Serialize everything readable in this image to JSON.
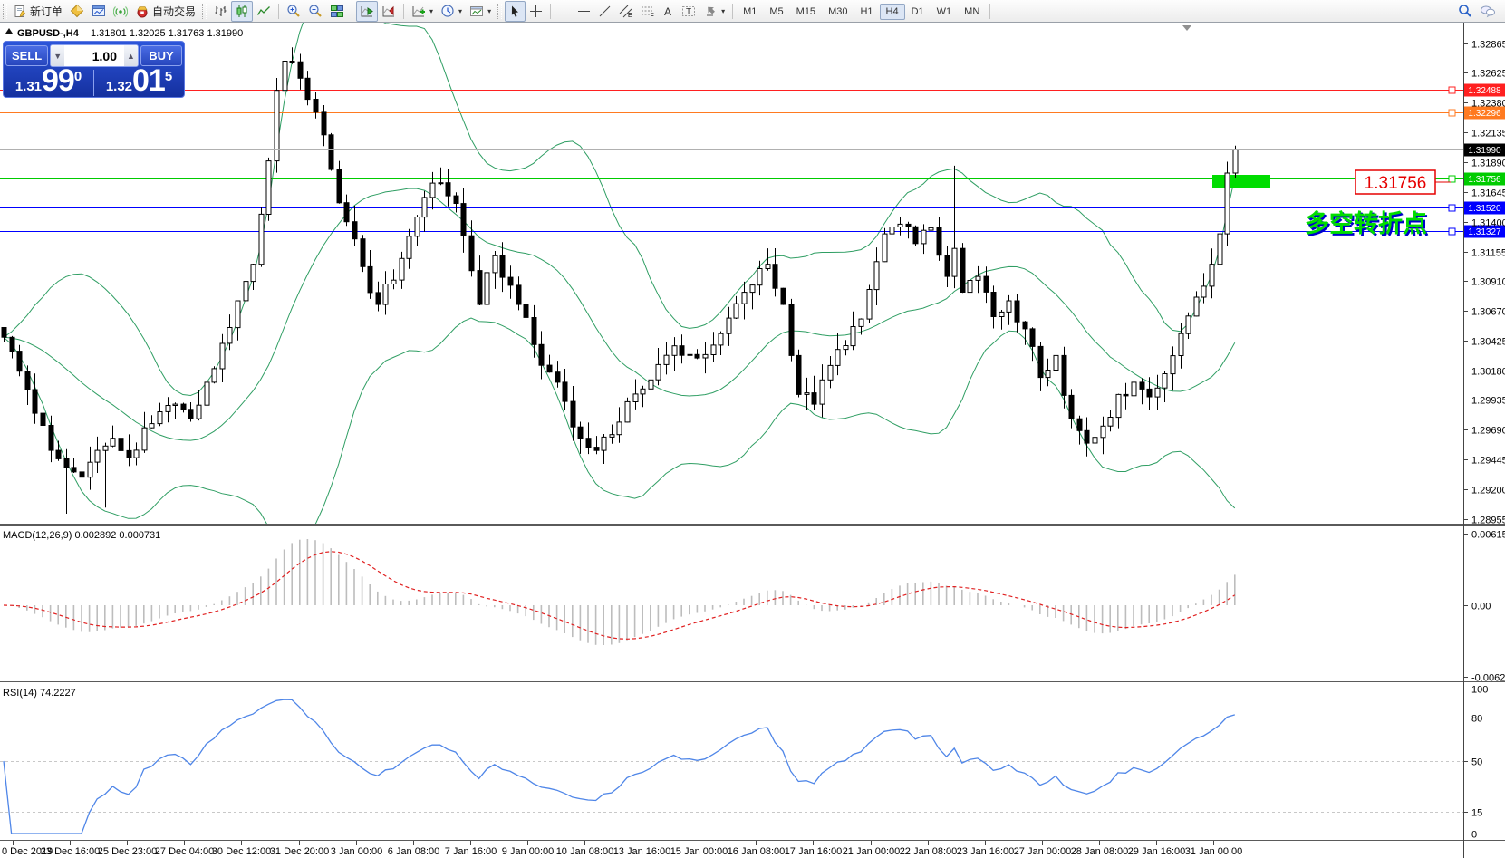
{
  "toolbar": {
    "new_order_label": "新订单",
    "autotrading_label": "自动交易",
    "timeframes": [
      "M1",
      "M5",
      "M15",
      "M30",
      "H1",
      "H4",
      "D1",
      "W1",
      "MN"
    ],
    "active_timeframe": "H4"
  },
  "chart_header": {
    "symbol_period": "GBPUSD-,H4",
    "ohlc": "1.31801 1.32025 1.31763 1.31990"
  },
  "trade_panel": {
    "sell_label": "SELL",
    "buy_label": "BUY",
    "volume": "1.00",
    "sell_price_small": "1.31",
    "sell_price_big": "99",
    "sell_price_sup": "0",
    "buy_price_small": "1.32",
    "buy_price_big": "01",
    "buy_price_sup": "5"
  },
  "annotations": {
    "price_label": "1.31756",
    "price_label_color": "#e60000",
    "turning_point": "多空转折点",
    "turning_point_color": "#00dd00",
    "turning_point_shadow": "#0000cc",
    "highlight_box_color": "#00dd00"
  },
  "price_axis": {
    "ticks": [
      "1.32865",
      "1.32625",
      "1.32380",
      "1.32135",
      "1.31890",
      "1.31645",
      "1.31400",
      "1.31155",
      "1.30910",
      "1.30670",
      "1.30425",
      "1.30180",
      "1.29935",
      "1.29690",
      "1.29445",
      "1.29200",
      "1.28955"
    ]
  },
  "levels": [
    {
      "price": "1.32488",
      "color": "#ff2020",
      "badge_fg": "#ffffff"
    },
    {
      "price": "1.32296",
      "color": "#ff7a20",
      "badge_fg": "#ffffff"
    },
    {
      "price": "1.31756",
      "color": "#00cc00",
      "badge_fg": "#ffffff"
    },
    {
      "price": "1.31520",
      "color": "#0000ff",
      "badge_fg": "#ffffff"
    },
    {
      "price": "1.31327",
      "color": "#0000ff",
      "badge_fg": "#ffffff"
    }
  ],
  "current_price": {
    "price": "1.31990",
    "line_color": "#b0b0b0",
    "badge_bg": "#000000",
    "badge_fg": "#ffffff"
  },
  "time_axis": {
    "labels": [
      "0 Dec 2019",
      "23 Dec 16:00",
      "25 Dec 23:00",
      "27 Dec 04:00",
      "30 Dec 12:00",
      "31 Dec 20:00",
      "3 Jan 00:00",
      "6 Jan 08:00",
      "7 Jan 16:00",
      "9 Jan 00:00",
      "10 Jan 08:00",
      "13 Jan 16:00",
      "15 Jan 00:00",
      "16 Jan 08:00",
      "17 Jan 16:00",
      "21 Jan 00:00",
      "22 Jan 08:00",
      "23 Jan 16:00",
      "27 Jan 00:00",
      "28 Jan 08:00",
      "29 Jan 16:00",
      "31 Jan 00:00"
    ]
  },
  "indicators": {
    "macd": {
      "label": "MACD(12,26,9) 0.002892 0.000731",
      "fast": 12,
      "slow": 26,
      "signal": 9,
      "current": "0.002892",
      "signal_current": "0.000731",
      "axis": [
        "0.006152",
        "0.00",
        "-0.006278"
      ],
      "histogram_color": "#bdbdbd",
      "signal_color": "#e02020"
    },
    "rsi": {
      "label": "RSI(14) 74.2227",
      "period": 14,
      "current": "74.2227",
      "axis": [
        "100",
        "80",
        "50",
        "15",
        "0"
      ],
      "level_lines": [
        80,
        50,
        15
      ],
      "line_color": "#4f86e8"
    },
    "bollinger": {
      "period": 20,
      "deviation": 2,
      "color": "#2f9e63"
    }
  },
  "chart_data": {
    "type": "candlestick",
    "symbol": "GBPUSD-",
    "timeframe": "H4",
    "bar_count": 159,
    "price_axis_high": 1.32865,
    "price_axis_low": 1.28955,
    "ohlc_current": {
      "open": 1.31801,
      "high": 1.32025,
      "low": 1.31763,
      "close": 1.3199
    },
    "close_anchors": [
      [
        0,
        1.3045
      ],
      [
        3,
        1.3002
      ],
      [
        6,
        1.2952
      ],
      [
        8,
        1.2938
      ],
      [
        10,
        1.293
      ],
      [
        12,
        1.2952
      ],
      [
        14,
        1.2962
      ],
      [
        16,
        1.2946
      ],
      [
        19,
        1.2974
      ],
      [
        22,
        1.299
      ],
      [
        24,
        1.2978
      ],
      [
        26,
        1.3008
      ],
      [
        28,
        1.304
      ],
      [
        30,
        1.3075
      ],
      [
        32,
        1.3105
      ],
      [
        34,
        1.319
      ],
      [
        35,
        1.3248
      ],
      [
        36,
        1.3272
      ],
      [
        38,
        1.3258
      ],
      [
        40,
        1.323
      ],
      [
        42,
        1.3183
      ],
      [
        44,
        1.314
      ],
      [
        46,
        1.3103
      ],
      [
        48,
        1.3072
      ],
      [
        50,
        1.3092
      ],
      [
        52,
        1.3128
      ],
      [
        54,
        1.316
      ],
      [
        56,
        1.3172
      ],
      [
        58,
        1.3155
      ],
      [
        61,
        1.3072
      ],
      [
        63,
        1.3112
      ],
      [
        66,
        1.3072
      ],
      [
        69,
        1.3022
      ],
      [
        71,
        1.3008
      ],
      [
        74,
        1.2962
      ],
      [
        76,
        1.2952
      ],
      [
        78,
        1.2965
      ],
      [
        80,
        1.2992
      ],
      [
        83,
        1.301
      ],
      [
        86,
        1.3038
      ],
      [
        89,
        1.3028
      ],
      [
        92,
        1.3048
      ],
      [
        95,
        1.3082
      ],
      [
        98,
        1.3105
      ],
      [
        100,
        1.3072
      ],
      [
        101,
        1.303
      ],
      [
        102,
        1.2998
      ],
      [
        104,
        1.299
      ],
      [
        107,
        1.3035
      ],
      [
        110,
        1.306
      ],
      [
        113,
        1.313
      ],
      [
        115,
        1.3138
      ],
      [
        117,
        1.3122
      ],
      [
        119,
        1.3135
      ],
      [
        121,
        1.3095
      ],
      [
        122,
        1.3118
      ],
      [
        123,
        1.3082
      ],
      [
        125,
        1.3095
      ],
      [
        127,
        1.3062
      ],
      [
        129,
        1.3075
      ],
      [
        131,
        1.3052
      ],
      [
        133,
        1.3012
      ],
      [
        135,
        1.303
      ],
      [
        137,
        1.2978
      ],
      [
        139,
        1.2958
      ],
      [
        141,
        1.2972
      ],
      [
        143,
        1.2998
      ],
      [
        145,
        1.3008
      ],
      [
        147,
        1.2996
      ],
      [
        149,
        1.3015
      ],
      [
        151,
        1.3048
      ],
      [
        153,
        1.3078
      ],
      [
        155,
        1.3105
      ],
      [
        156,
        1.313
      ],
      [
        157,
        1.318
      ],
      [
        158,
        1.3199
      ]
    ],
    "wick_spikes": [
      {
        "i": 8,
        "low": 1.29
      },
      {
        "i": 10,
        "low": 1.2896
      },
      {
        "i": 13,
        "low": 1.2905
      },
      {
        "i": 36,
        "high": 1.32855
      },
      {
        "i": 57,
        "high": 1.31835
      },
      {
        "i": 76,
        "low": 1.2949
      },
      {
        "i": 122,
        "high": 1.3186
      },
      {
        "i": 139,
        "low": 1.2947
      },
      {
        "i": 141,
        "low": 1.2949
      },
      {
        "i": 158,
        "high": 1.32025,
        "low": 1.31763
      }
    ],
    "candle_colors": {
      "bull_fill": "#ffffff",
      "bear_fill": "#000000",
      "border": "#000000"
    }
  }
}
